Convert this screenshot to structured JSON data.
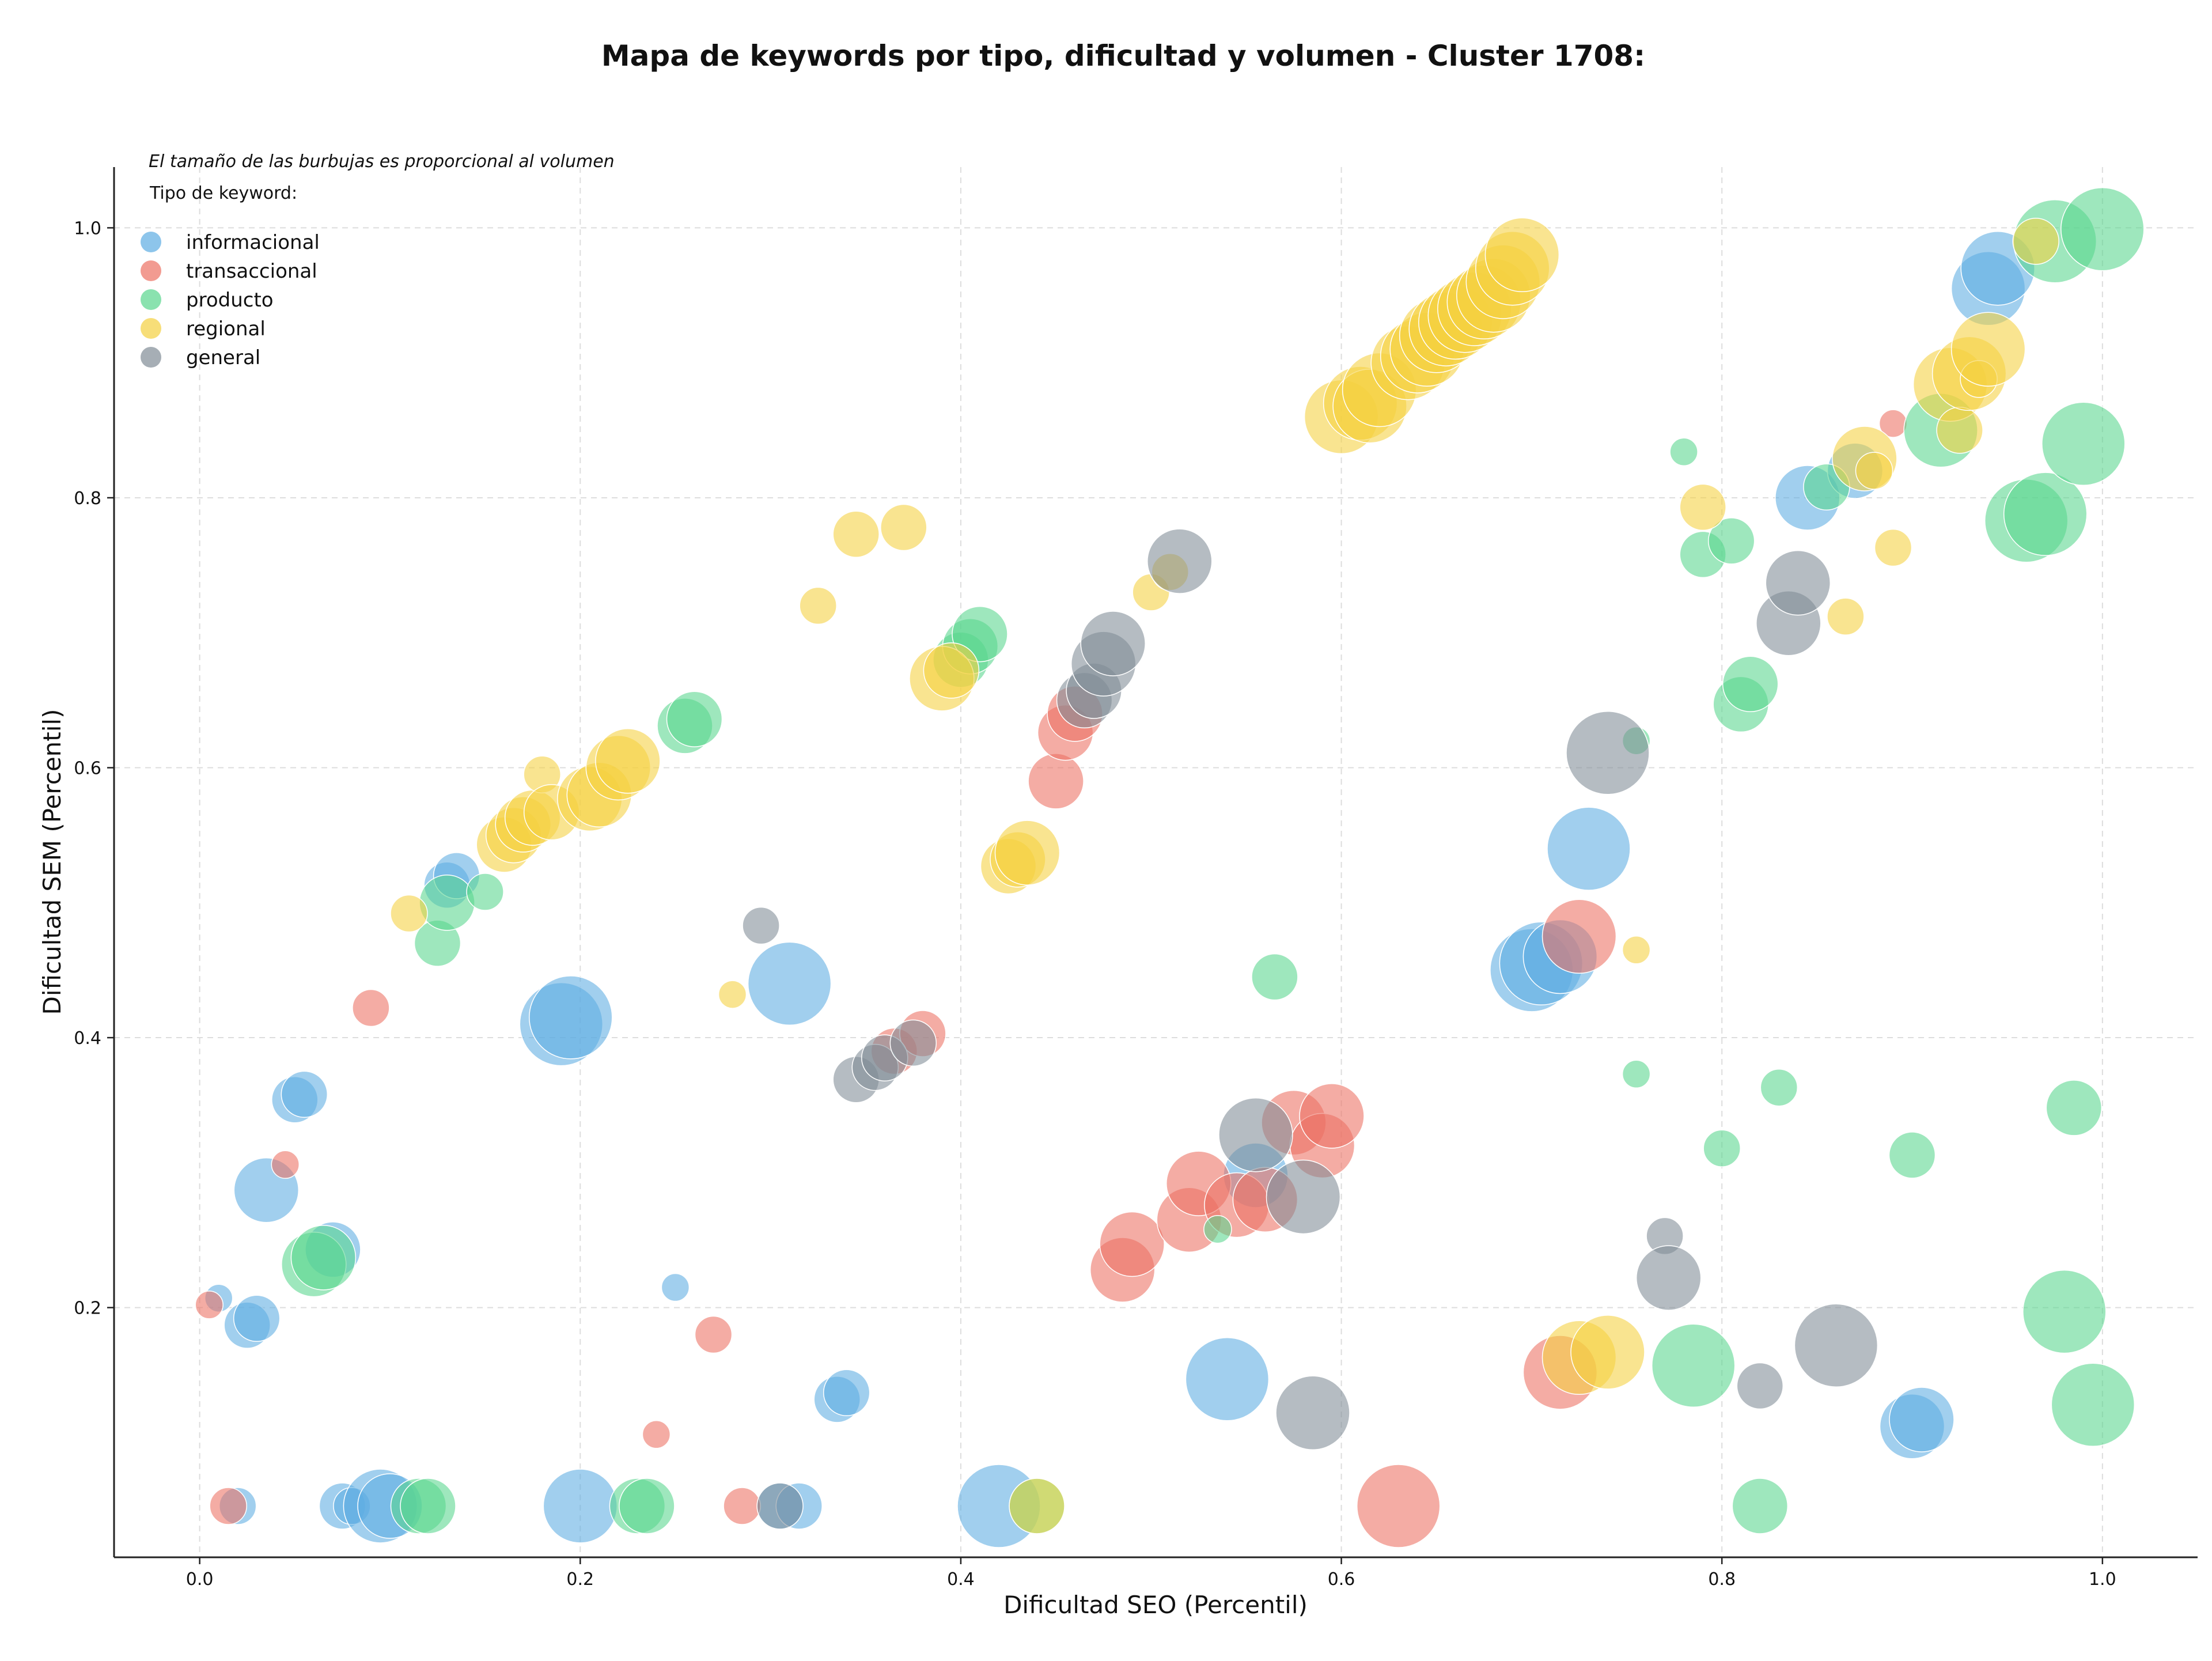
{
  "chart_data": {
    "type": "scatter",
    "title": "Mapa de keywords por tipo, dificultad y volumen - Cluster 1708:",
    "xlabel": "Dificultad SEO (Percentil)",
    "ylabel": "Dificultad SEM (Percentil)",
    "xlim": [
      -0.045,
      1.05
    ],
    "ylim": [
      0.015,
      1.045
    ],
    "xticks": [
      "0.0",
      "0.2",
      "0.4",
      "0.6",
      "0.8",
      "1.0"
    ],
    "yticks": [
      "0.2",
      "0.4",
      "0.6",
      "0.8",
      "1.0"
    ],
    "grid": true,
    "note": "El tamaño de las burbujas es proporcional al volumen",
    "legend_title": "Tipo de keyword:",
    "legend_position": "top-left",
    "series": [
      {
        "name": "informacional",
        "color": "#5DADE2",
        "points": [
          [
            0.01,
            0.207,
            1
          ],
          [
            0.02,
            0.053,
            2
          ],
          [
            0.025,
            0.187,
            3
          ],
          [
            0.03,
            0.192,
            3
          ],
          [
            0.035,
            0.287,
            5
          ],
          [
            0.05,
            0.354,
            3
          ],
          [
            0.055,
            0.358,
            3
          ],
          [
            0.07,
            0.243,
            4
          ],
          [
            0.075,
            0.053,
            3
          ],
          [
            0.08,
            0.053,
            2
          ],
          [
            0.095,
            0.053,
            6
          ],
          [
            0.1,
            0.053,
            5
          ],
          [
            0.13,
            0.513,
            3
          ],
          [
            0.135,
            0.52,
            3
          ],
          [
            0.19,
            0.41,
            7
          ],
          [
            0.195,
            0.415,
            7
          ],
          [
            0.2,
            0.053,
            6
          ],
          [
            0.25,
            0.215,
            1
          ],
          [
            0.305,
            0.053,
            3
          ],
          [
            0.31,
            0.44,
            7
          ],
          [
            0.315,
            0.053,
            3
          ],
          [
            0.335,
            0.132,
            3
          ],
          [
            0.34,
            0.137,
            3
          ],
          [
            0.42,
            0.053,
            7
          ],
          [
            0.54,
            0.147,
            7
          ],
          [
            0.555,
            0.298,
            5
          ],
          [
            0.7,
            0.45,
            7
          ],
          [
            0.705,
            0.455,
            7
          ],
          [
            0.715,
            0.46,
            6
          ],
          [
            0.73,
            0.54,
            7
          ],
          [
            0.845,
            0.8,
            5
          ],
          [
            0.87,
            0.82,
            4
          ],
          [
            0.9,
            0.112,
            5
          ],
          [
            0.905,
            0.117,
            5
          ],
          [
            0.94,
            0.955,
            6
          ],
          [
            0.945,
            0.97,
            6
          ]
        ]
      },
      {
        "name": "transaccional",
        "color": "#EC7063",
        "points": [
          [
            0.005,
            0.202,
            1
          ],
          [
            0.015,
            0.053,
            2
          ],
          [
            0.045,
            0.306,
            1
          ],
          [
            0.09,
            0.422,
            2
          ],
          [
            0.24,
            0.106,
            1
          ],
          [
            0.27,
            0.18,
            2
          ],
          [
            0.285,
            0.053,
            2
          ],
          [
            0.365,
            0.39,
            3
          ],
          [
            0.38,
            0.403,
            3
          ],
          [
            0.45,
            0.59,
            4
          ],
          [
            0.455,
            0.626,
            4
          ],
          [
            0.46,
            0.64,
            4
          ],
          [
            0.485,
            0.228,
            5
          ],
          [
            0.49,
            0.247,
            5
          ],
          [
            0.52,
            0.265,
            5
          ],
          [
            0.525,
            0.292,
            5
          ],
          [
            0.545,
            0.276,
            5
          ],
          [
            0.56,
            0.28,
            5
          ],
          [
            0.575,
            0.337,
            5
          ],
          [
            0.59,
            0.32,
            5
          ],
          [
            0.595,
            0.342,
            5
          ],
          [
            0.63,
            0.053,
            7
          ],
          [
            0.715,
            0.152,
            6
          ],
          [
            0.725,
            0.475,
            6
          ],
          [
            0.89,
            0.855,
            1
          ]
        ]
      },
      {
        "name": "producto",
        "color": "#58D68D",
        "points": [
          [
            0.06,
            0.232,
            5
          ],
          [
            0.065,
            0.237,
            5
          ],
          [
            0.115,
            0.053,
            4
          ],
          [
            0.12,
            0.053,
            4
          ],
          [
            0.125,
            0.47,
            3
          ],
          [
            0.13,
            0.5,
            4
          ],
          [
            0.15,
            0.508,
            2
          ],
          [
            0.23,
            0.053,
            4
          ],
          [
            0.235,
            0.053,
            4
          ],
          [
            0.255,
            0.631,
            4
          ],
          [
            0.26,
            0.636,
            4
          ],
          [
            0.4,
            0.68,
            4
          ],
          [
            0.405,
            0.69,
            4
          ],
          [
            0.41,
            0.699,
            4
          ],
          [
            0.44,
            0.053,
            4
          ],
          [
            0.535,
            0.258,
            1
          ],
          [
            0.565,
            0.445,
            3
          ],
          [
            0.755,
            0.373,
            1
          ],
          [
            0.755,
            0.62,
            1
          ],
          [
            0.78,
            0.834,
            1
          ],
          [
            0.785,
            0.157,
            7
          ],
          [
            0.79,
            0.758,
            3
          ],
          [
            0.8,
            0.318,
            2
          ],
          [
            0.805,
            0.768,
            3
          ],
          [
            0.81,
            0.647,
            4
          ],
          [
            0.815,
            0.662,
            4
          ],
          [
            0.82,
            0.053,
            4
          ],
          [
            0.83,
            0.363,
            2
          ],
          [
            0.855,
            0.808,
            3
          ],
          [
            0.9,
            0.313,
            3
          ],
          [
            0.915,
            0.85,
            6
          ],
          [
            0.96,
            0.783,
            7
          ],
          [
            0.97,
            0.788,
            7
          ],
          [
            0.975,
            0.99,
            7
          ],
          [
            0.98,
            0.197,
            7
          ],
          [
            0.985,
            0.348,
            4
          ],
          [
            0.99,
            0.84,
            7
          ],
          [
            0.995,
            0.128,
            7
          ],
          [
            1.0,
            0.999,
            7
          ]
        ]
      },
      {
        "name": "regional",
        "color": "#F4D03F",
        "points": [
          [
            0.11,
            0.492,
            2
          ],
          [
            0.16,
            0.543,
            4
          ],
          [
            0.165,
            0.55,
            4
          ],
          [
            0.17,
            0.558,
            4
          ],
          [
            0.175,
            0.563,
            4
          ],
          [
            0.18,
            0.595,
            2
          ],
          [
            0.185,
            0.567,
            4
          ],
          [
            0.205,
            0.577,
            5
          ],
          [
            0.21,
            0.58,
            5
          ],
          [
            0.22,
            0.6,
            5
          ],
          [
            0.225,
            0.605,
            5
          ],
          [
            0.28,
            0.432,
            1
          ],
          [
            0.325,
            0.72,
            2
          ],
          [
            0.345,
            0.773,
            3
          ],
          [
            0.37,
            0.778,
            3
          ],
          [
            0.39,
            0.666,
            5
          ],
          [
            0.395,
            0.672,
            4
          ],
          [
            0.425,
            0.527,
            4
          ],
          [
            0.43,
            0.532,
            4
          ],
          [
            0.435,
            0.537,
            5
          ],
          [
            0.44,
            0.053,
            4
          ],
          [
            0.5,
            0.73,
            2
          ],
          [
            0.51,
            0.745,
            2
          ],
          [
            0.6,
            0.86,
            6
          ],
          [
            0.61,
            0.87,
            6
          ],
          [
            0.615,
            0.868,
            6
          ],
          [
            0.62,
            0.88,
            6
          ],
          [
            0.635,
            0.9,
            6
          ],
          [
            0.64,
            0.905,
            6
          ],
          [
            0.645,
            0.91,
            6
          ],
          [
            0.65,
            0.92,
            6
          ],
          [
            0.655,
            0.925,
            6
          ],
          [
            0.66,
            0.93,
            6
          ],
          [
            0.665,
            0.935,
            6
          ],
          [
            0.67,
            0.94,
            6
          ],
          [
            0.675,
            0.945,
            6
          ],
          [
            0.68,
            0.95,
            6
          ],
          [
            0.685,
            0.96,
            6
          ],
          [
            0.69,
            0.97,
            6
          ],
          [
            0.695,
            0.98,
            6
          ],
          [
            0.725,
            0.163,
            6
          ],
          [
            0.74,
            0.167,
            6
          ],
          [
            0.755,
            0.465,
            1
          ],
          [
            0.79,
            0.793,
            3
          ],
          [
            0.865,
            0.712,
            2
          ],
          [
            0.875,
            0.829,
            5
          ],
          [
            0.88,
            0.82,
            2
          ],
          [
            0.89,
            0.763,
            2
          ],
          [
            0.92,
            0.884,
            6
          ],
          [
            0.925,
            0.85,
            3
          ],
          [
            0.93,
            0.892,
            6
          ],
          [
            0.935,
            0.888,
            2
          ],
          [
            0.94,
            0.91,
            6
          ],
          [
            0.965,
            0.99,
            3
          ]
        ]
      },
      {
        "name": "general",
        "color": "#808B96",
        "points": [
          [
            0.295,
            0.483,
            2
          ],
          [
            0.305,
            0.053,
            3
          ],
          [
            0.345,
            0.369,
            3
          ],
          [
            0.355,
            0.378,
            3
          ],
          [
            0.36,
            0.385,
            3
          ],
          [
            0.375,
            0.396,
            3
          ],
          [
            0.465,
            0.65,
            4
          ],
          [
            0.47,
            0.657,
            4
          ],
          [
            0.475,
            0.677,
            5
          ],
          [
            0.48,
            0.692,
            5
          ],
          [
            0.515,
            0.753,
            5
          ],
          [
            0.555,
            0.328,
            6
          ],
          [
            0.58,
            0.282,
            6
          ],
          [
            0.585,
            0.122,
            6
          ],
          [
            0.74,
            0.611,
            7
          ],
          [
            0.77,
            0.253,
            2
          ],
          [
            0.772,
            0.222,
            5
          ],
          [
            0.82,
            0.142,
            3
          ],
          [
            0.835,
            0.707,
            5
          ],
          [
            0.84,
            0.737,
            5
          ],
          [
            0.86,
            0.172,
            7
          ]
        ]
      }
    ]
  }
}
